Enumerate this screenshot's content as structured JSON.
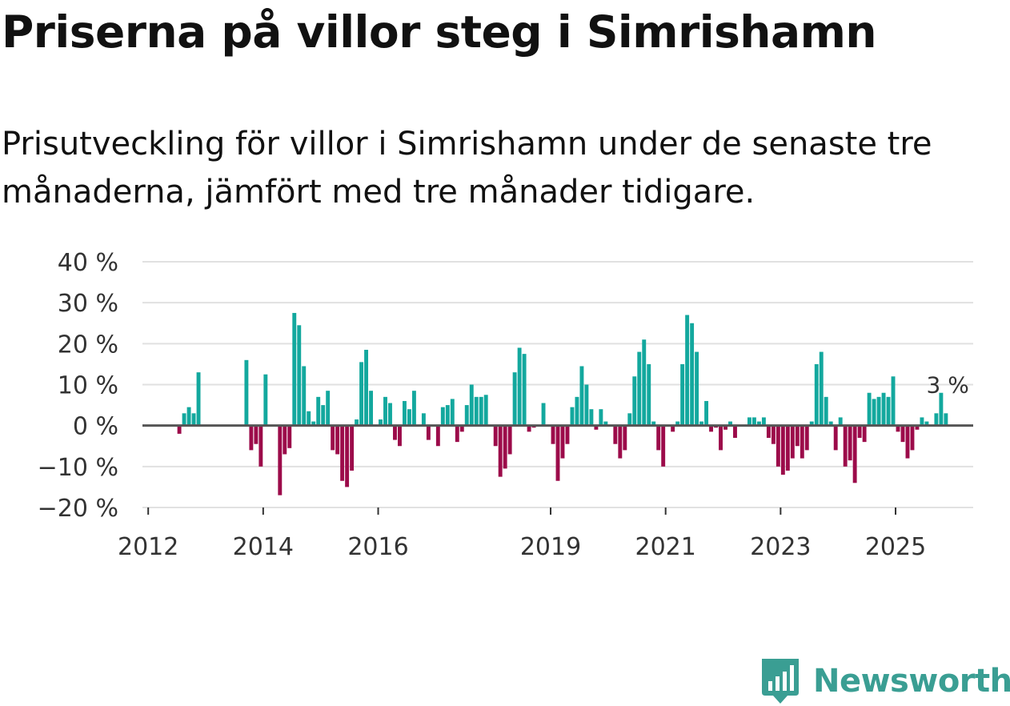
{
  "header": {
    "title": "Priserna på villor steg i Simrishamn",
    "subtitle": "Prisutveckling för villor i Simrishamn under de senaste tre månaderna, jämfört med tre månader tidigare."
  },
  "brand": {
    "name": "Newsworthy",
    "color": "#3a9e93"
  },
  "colors": {
    "positive": "#13a89e",
    "negative": "#9c0b4a",
    "grid": "#e1e1e1",
    "zero_line": "#555555"
  },
  "chart_data": {
    "type": "bar",
    "title": "Priserna på villor steg i Simrishamn",
    "ylabel": "",
    "xlabel": "",
    "ylim": [
      -20,
      40
    ],
    "y_ticks": [
      -20,
      -10,
      0,
      10,
      20,
      30,
      40
    ],
    "y_tick_labels": [
      "−20 %",
      "−10 %",
      "0 %",
      "10 %",
      "20 %",
      "30 %",
      "40 %"
    ],
    "x_ticks": [
      2012.0,
      2014.0,
      2016.0,
      2019.0,
      2021.0,
      2023.0,
      2025.0
    ],
    "x_tick_labels": [
      "2012",
      "2014",
      "2016",
      "2019",
      "2021",
      "2023",
      "2025"
    ],
    "x_range": [
      2011.9,
      2026.35
    ],
    "start_month": "2012-01",
    "bar_interval": "monthly",
    "units": "%",
    "annotation": {
      "label": "3 %",
      "value": 3
    },
    "values": [
      null,
      null,
      null,
      null,
      null,
      null,
      -2,
      3,
      4.5,
      3,
      13,
      null,
      null,
      null,
      null,
      null,
      null,
      null,
      null,
      null,
      16,
      -6,
      -4.5,
      -10,
      12.5,
      null,
      null,
      -17,
      -7,
      -5.5,
      27.5,
      24.5,
      14.5,
      3.5,
      1,
      7,
      5,
      8.5,
      -6,
      -7,
      -13.5,
      -15,
      -11,
      1.5,
      15.5,
      18.5,
      8.5,
      null,
      1.5,
      7,
      5.5,
      -3.5,
      -5,
      6,
      4,
      8.5,
      null,
      3,
      -3.5,
      null,
      -5,
      4.5,
      5,
      6.5,
      -4,
      -1.5,
      5,
      10,
      7,
      7,
      7.5,
      null,
      -5,
      -12.5,
      -10.5,
      -7,
      13,
      19,
      17.5,
      -1.5,
      -0.5,
      null,
      5.5,
      null,
      -4.5,
      -13.5,
      -8,
      -4.5,
      4.5,
      7,
      14.5,
      10,
      4,
      -1,
      4,
      1,
      null,
      -4.5,
      -8,
      -6,
      3,
      12,
      18,
      21,
      15,
      1,
      -6,
      -10,
      null,
      -1.5,
      1,
      15,
      27,
      25,
      18,
      1,
      6,
      -1.5,
      -0.5,
      -6,
      -1,
      1,
      -3,
      null,
      null,
      2,
      2,
      1,
      2,
      -3,
      -4.5,
      -10,
      -12,
      -11,
      -8,
      -5,
      -8,
      -6,
      1,
      15,
      18,
      7,
      1,
      -6,
      2,
      -10,
      -8.5,
      -14,
      -3,
      -4,
      8,
      6.5,
      7,
      8,
      7,
      12,
      -1.5,
      -4,
      -8,
      -6,
      -1,
      2,
      1,
      null,
      3,
      8,
      3
    ]
  }
}
